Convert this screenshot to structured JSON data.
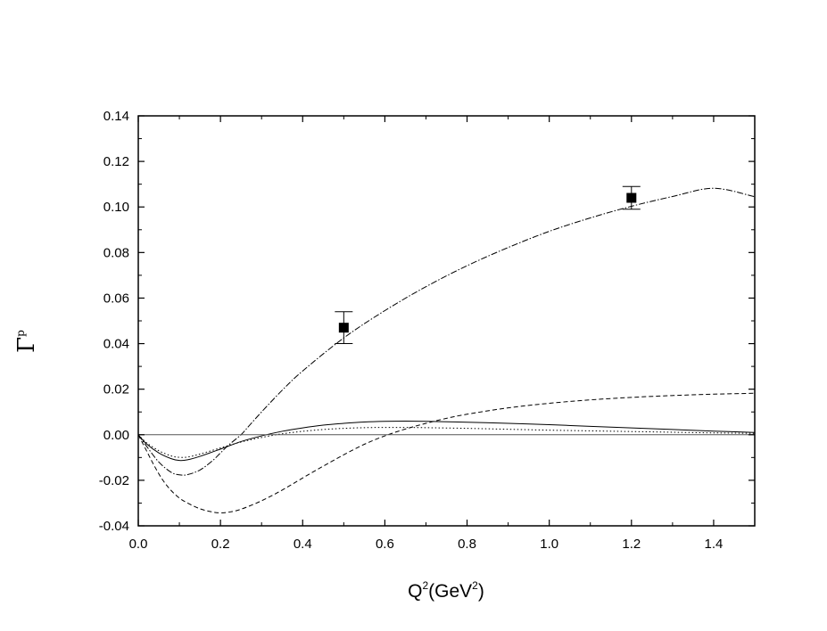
{
  "chart_data": {
    "type": "line",
    "xlabel": {
      "base": "Q",
      "sup": "2",
      "mid": "(GeV",
      "sup2": "2",
      "end": ")"
    },
    "ylabel": {
      "base": "Γ",
      "sup": "p"
    },
    "xlim": [
      0.0,
      1.5
    ],
    "ylim": [
      -0.04,
      0.14
    ],
    "xticks": [
      0.0,
      0.2,
      0.4,
      0.6,
      0.8,
      1.0,
      1.2,
      1.4
    ],
    "xtick_labels": [
      "0.0",
      "0.2",
      "0.4",
      "0.6",
      "0.8",
      "1.0",
      "1.2",
      "1.4"
    ],
    "yticks": [
      -0.04,
      -0.02,
      0.0,
      0.02,
      0.04,
      0.06,
      0.08,
      0.1,
      0.12,
      0.14
    ],
    "ytick_labels": [
      "-0.04",
      "-0.02",
      "0.00",
      "0.02",
      "0.04",
      "0.06",
      "0.08",
      "0.10",
      "0.12",
      "0.14"
    ],
    "grid": false,
    "zero_line": true,
    "series": [
      {
        "style": "solid",
        "x": [
          0.0,
          0.02,
          0.05,
          0.08,
          0.1,
          0.12,
          0.15,
          0.2,
          0.25,
          0.3,
          0.35,
          0.4,
          0.45,
          0.5,
          0.55,
          0.6,
          0.65,
          0.7,
          0.8,
          0.9,
          1.0,
          1.1,
          1.2,
          1.3,
          1.4,
          1.5
        ],
        "y": [
          0.0,
          -0.004,
          -0.008,
          -0.0105,
          -0.0113,
          -0.011,
          -0.0095,
          -0.0063,
          -0.003,
          -0.0005,
          0.0015,
          0.003,
          0.0042,
          0.005,
          0.0056,
          0.0059,
          0.006,
          0.0059,
          0.0055,
          0.005,
          0.0044,
          0.0037,
          0.003,
          0.0023,
          0.0016,
          0.001
        ]
      },
      {
        "style": "dotted",
        "x": [
          0.0,
          0.02,
          0.05,
          0.08,
          0.1,
          0.12,
          0.15,
          0.2,
          0.25,
          0.3,
          0.35,
          0.4,
          0.45,
          0.5,
          0.55,
          0.6,
          0.65,
          0.7,
          0.8,
          0.9,
          1.0,
          1.1,
          1.2,
          1.3,
          1.4,
          1.5
        ],
        "y": [
          0.0,
          -0.0035,
          -0.007,
          -0.0093,
          -0.0099,
          -0.0098,
          -0.0085,
          -0.0058,
          -0.0032,
          -0.0012,
          0.0004,
          0.0015,
          0.0023,
          0.0028,
          0.0031,
          0.0032,
          0.0032,
          0.0031,
          0.0028,
          0.0024,
          0.002,
          0.0017,
          0.0014,
          0.0011,
          0.0008,
          0.0006
        ]
      },
      {
        "style": "dashed",
        "x": [
          0.0,
          0.02,
          0.04,
          0.06,
          0.08,
          0.1,
          0.12,
          0.15,
          0.18,
          0.2,
          0.22,
          0.25,
          0.3,
          0.35,
          0.4,
          0.45,
          0.5,
          0.55,
          0.6,
          0.65,
          0.7,
          0.75,
          0.8,
          0.9,
          1.0,
          1.1,
          1.2,
          1.3,
          1.4,
          1.5
        ],
        "y": [
          0.0,
          -0.007,
          -0.014,
          -0.02,
          -0.0245,
          -0.0278,
          -0.03,
          -0.0325,
          -0.0339,
          -0.0343,
          -0.034,
          -0.0327,
          -0.029,
          -0.0243,
          -0.019,
          -0.0138,
          -0.0088,
          -0.0042,
          -0.0005,
          0.0025,
          0.005,
          0.0072,
          0.009,
          0.0118,
          0.0138,
          0.0153,
          0.0164,
          0.0172,
          0.0178,
          0.0182
        ]
      },
      {
        "style": "dash-dot",
        "x": [
          0.0,
          0.02,
          0.05,
          0.08,
          0.1,
          0.12,
          0.15,
          0.18,
          0.2,
          0.22,
          0.25,
          0.27,
          0.3,
          0.35,
          0.4,
          0.5,
          0.6,
          0.7,
          0.8,
          0.9,
          1.0,
          1.1,
          1.2,
          1.3,
          1.4,
          1.5
        ],
        "y": [
          0.0,
          -0.005,
          -0.012,
          -0.0165,
          -0.0176,
          -0.0175,
          -0.0155,
          -0.0115,
          -0.008,
          -0.0045,
          0.0,
          0.004,
          0.01,
          0.0195,
          0.028,
          0.0425,
          0.0545,
          0.065,
          0.0742,
          0.0822,
          0.0893,
          0.0952,
          0.1003,
          0.1046,
          0.1082,
          0.1045
        ]
      }
    ],
    "points": [
      {
        "x": 0.5,
        "y": 0.047,
        "err": 0.007
      },
      {
        "x": 1.2,
        "y": 0.104,
        "err": 0.005
      }
    ]
  }
}
